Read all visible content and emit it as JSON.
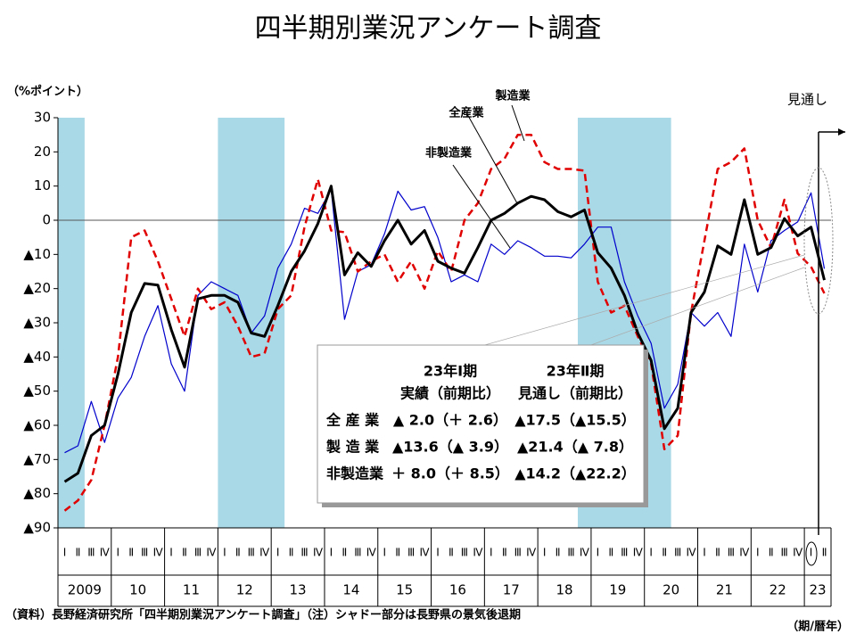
{
  "chart_data": {
    "type": "line",
    "title": "四半期別業況アンケート調査",
    "y_unit": "（%ポイント）",
    "x_unit": "（期/暦年）",
    "source": "（資料）長野経済研究所「四半期別業況アンケート調査」（注）シャドー部分は長野県の景気後退期",
    "outlook_label": "見通し",
    "categories": [
      "Ⅰ",
      "Ⅱ",
      "Ⅲ",
      "Ⅳ",
      "Ⅰ",
      "Ⅱ",
      "Ⅲ",
      "Ⅳ",
      "Ⅰ",
      "Ⅱ",
      "Ⅲ",
      "Ⅳ",
      "Ⅰ",
      "Ⅱ",
      "Ⅲ",
      "Ⅳ",
      "Ⅰ",
      "Ⅱ",
      "Ⅲ",
      "Ⅳ",
      "Ⅰ",
      "Ⅱ",
      "Ⅲ",
      "Ⅳ",
      "Ⅰ",
      "Ⅱ",
      "Ⅲ",
      "Ⅳ",
      "Ⅰ",
      "Ⅱ",
      "Ⅲ",
      "Ⅳ",
      "Ⅰ",
      "Ⅱ",
      "Ⅲ",
      "Ⅳ",
      "Ⅰ",
      "Ⅱ",
      "Ⅲ",
      "Ⅳ",
      "Ⅰ",
      "Ⅱ",
      "Ⅲ",
      "Ⅳ",
      "Ⅰ",
      "Ⅱ",
      "Ⅲ",
      "Ⅳ",
      "Ⅰ",
      "Ⅱ",
      "Ⅲ",
      "Ⅳ",
      "Ⅰ",
      "Ⅱ",
      "Ⅲ",
      "Ⅳ",
      "Ⅰ",
      "Ⅱ"
    ],
    "years": [
      "2009",
      "10",
      "11",
      "12",
      "13",
      "14",
      "15",
      "16",
      "17",
      "18",
      "19",
      "20",
      "21",
      "22",
      "23"
    ],
    "shaded": [
      {
        "start": 0,
        "end": 1
      },
      {
        "start": 12,
        "end": 16
      },
      {
        "start": 39,
        "end": 45
      }
    ],
    "ylim": [
      -90,
      30
    ],
    "yticks": [
      30,
      20,
      10,
      0,
      {
        "value": -10,
        "label": "▲10"
      },
      {
        "value": -20,
        "label": "▲20"
      },
      {
        "value": -30,
        "label": "▲30"
      },
      {
        "value": -40,
        "label": "▲40"
      },
      {
        "value": -50,
        "label": "▲50"
      },
      {
        "value": -60,
        "label": "▲60"
      },
      {
        "value": -70,
        "label": "▲70"
      },
      {
        "value": -80,
        "label": "▲80"
      },
      {
        "value": -90,
        "label": "▲90"
      }
    ],
    "series": [
      {
        "name": "非製造業",
        "color": "#0000cc",
        "values": [
          -68,
          -66,
          -53,
          -65,
          -52,
          -46,
          -34,
          -25,
          -42,
          -50,
          -22,
          -18,
          -20,
          -22,
          -33,
          -28,
          -14,
          -7,
          3.5,
          2,
          9,
          -29,
          -15,
          -13,
          -4,
          8.5,
          3,
          4,
          -5,
          -18,
          -16,
          -18,
          -7,
          -10,
          -6,
          -8,
          -10.5,
          -10.5,
          -11,
          -7,
          -2,
          -2,
          -18,
          -28,
          -36,
          -55,
          -48,
          -27,
          -31,
          -27,
          -34,
          -7,
          -21,
          -6,
          -3,
          -0.5,
          8.0,
          -14.2
        ]
      },
      {
        "name": "製造業",
        "color": "#e00000",
        "values": [
          -85,
          -82,
          -76,
          -60,
          -40,
          -5,
          -3,
          -12,
          -23,
          -34,
          -20,
          -26,
          -24,
          -31,
          -40,
          -39,
          -26,
          -22,
          -2,
          12,
          -3,
          -3.5,
          -15,
          -12,
          -10,
          -18,
          -12,
          -20,
          -9,
          -15,
          0,
          5,
          15,
          18,
          25,
          25,
          17,
          15,
          15,
          14.5,
          -18,
          -27,
          -25,
          -34,
          -42,
          -67,
          -63,
          -27,
          -6,
          15,
          17,
          21,
          0,
          -8,
          6,
          -9.7,
          -13.6,
          -21.4
        ]
      },
      {
        "name": "全産業",
        "color": "#000000",
        "values": [
          -76.5,
          -74,
          -63,
          -60,
          -45,
          -27,
          -18.5,
          -19,
          -32,
          -43,
          -23,
          -22,
          -22,
          -24,
          -33,
          -34,
          -25,
          -15,
          -9,
          -1,
          10,
          -16,
          -9.5,
          -13.5,
          -6,
          0,
          -7,
          -3,
          -12,
          -14,
          -15.5,
          -8,
          0,
          2,
          5,
          7,
          6,
          2.5,
          1,
          3,
          -9.5,
          -14,
          -22,
          -33,
          -41,
          -61,
          -55,
          -27,
          -21,
          -7.5,
          -10,
          6,
          -10,
          -8,
          0.5,
          -4.6,
          -2.0,
          -17.5
        ]
      }
    ],
    "table": {
      "header": [
        "23年Ⅰ期",
        "23年Ⅱ期"
      ],
      "subheader": [
        "実績（前期比）",
        "見通し（前期比）"
      ],
      "rows": [
        [
          "全 産 業",
          "▲ 2.0（＋ 2.6）",
          "▲17.5（▲15.5）"
        ],
        [
          "製 造 業",
          "▲13.6（▲ 3.9）",
          "▲21.4（▲ 7.8）"
        ],
        [
          "非製造業",
          "＋ 8.0（＋ 8.5）",
          "▲14.2（▲22.2）"
        ]
      ]
    }
  }
}
